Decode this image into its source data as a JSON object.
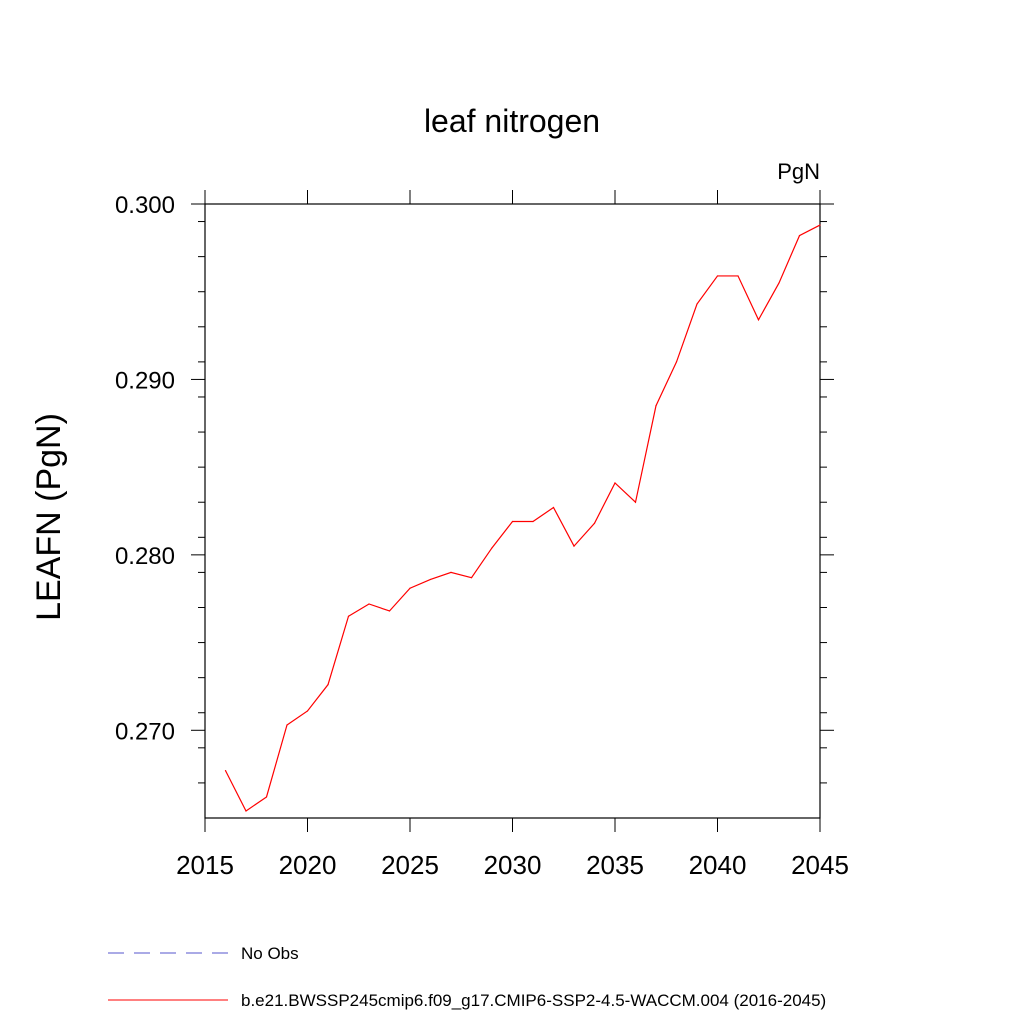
{
  "chart_data": {
    "type": "line",
    "title": "leaf nitrogen",
    "units_label": "PgN",
    "ylabel": "LEAFN  (PgN)",
    "xlabel": "",
    "xlim": [
      2015,
      2045
    ],
    "ylim": [
      0.265,
      0.3
    ],
    "x_major_ticks": [
      2015,
      2020,
      2025,
      2030,
      2035,
      2040,
      2045
    ],
    "x_tick_labels": [
      "2015",
      "2020",
      "2025",
      "2030",
      "2035",
      "2040",
      "2045"
    ],
    "y_major_ticks": [
      0.27,
      0.28,
      0.29,
      0.3
    ],
    "y_tick_labels": [
      "0.270",
      "0.280",
      "0.290",
      "0.300"
    ],
    "y_minor_step": 0.002,
    "grid": false,
    "series": [
      {
        "name": "b.e21.BWSSP245cmip6.f09_g17.CMIP6-SSP2-4.5-WACCM.004 (2016-2045)",
        "color": "#ff0000",
        "dash": "solid",
        "x": [
          2016,
          2017,
          2018,
          2019,
          2020,
          2021,
          2022,
          2023,
          2024,
          2025,
          2026,
          2027,
          2028,
          2029,
          2030,
          2031,
          2032,
          2033,
          2034,
          2035,
          2036,
          2037,
          2038,
          2039,
          2040,
          2041,
          2042,
          2043,
          2044,
          2045
        ],
        "y": [
          0.2677,
          0.2654,
          0.2662,
          0.2703,
          0.2711,
          0.2726,
          0.2765,
          0.2772,
          0.2768,
          0.2781,
          0.2786,
          0.279,
          0.2787,
          0.2804,
          0.2819,
          0.2819,
          0.2827,
          0.2805,
          0.2818,
          0.2841,
          0.283,
          0.2885,
          0.291,
          0.2943,
          0.2959,
          0.2959,
          0.2934,
          0.2955,
          0.2982,
          0.2988
        ]
      }
    ],
    "legend": {
      "placement": "bottom",
      "entries": [
        {
          "label": "No Obs",
          "color": "#5555cc",
          "dash": "dashed"
        },
        {
          "label": "b.e21.BWSSP245cmip6.f09_g17.CMIP6-SSP2-4.5-WACCM.004 (2016-2045)",
          "color": "#ff0000",
          "dash": "solid"
        }
      ]
    }
  }
}
